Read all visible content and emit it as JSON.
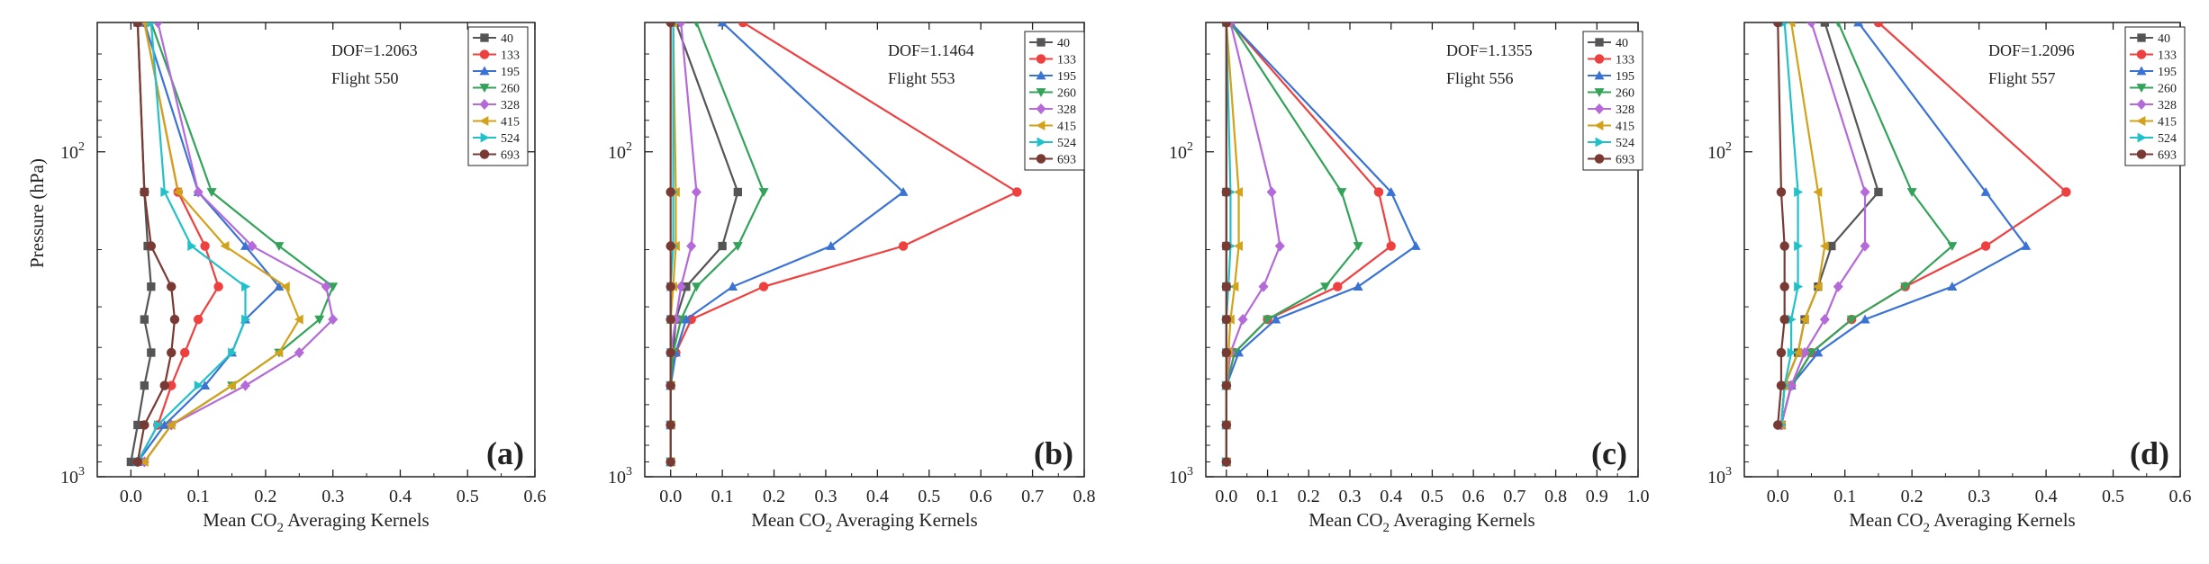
{
  "figure_colors": {
    "40": "#555555",
    "133": "#ef4040",
    "195": "#3a73d4",
    "260": "#34a35a",
    "328": "#b46ad8",
    "415": "#d2a21a",
    "524": "#22c1c9",
    "693": "#7a3a34"
  },
  "chart_data": [
    {
      "type": "line",
      "panel_label": "(a)",
      "dof_text": "DOF=1.2063",
      "flight_text": "Flight 550",
      "ylabel": "Pressure (hPa)",
      "xlabel_main": "Mean CO",
      "xlabel_sub": "2",
      "xlabel_tail": " Averaging Kernels",
      "xlim": [
        -0.05,
        0.6
      ],
      "xticks": [
        0.0,
        0.1,
        0.2,
        0.3,
        0.4,
        0.5,
        0.6
      ],
      "xtick_labels": [
        "0.0",
        "0.1",
        "0.2",
        "0.3",
        "0.4",
        "0.5",
        "0.6"
      ],
      "ylim": [
        40,
        1000
      ],
      "yscale": "log",
      "ytick_labels": [
        {
          "base": "10",
          "exp": "2"
        },
        {
          "base": "10",
          "exp": "3"
        }
      ],
      "pressure_levels": [
        40,
        133,
        195,
        260,
        328,
        415,
        524,
        693,
        900
      ],
      "series": [
        {
          "name": "40",
          "values": [
            0.01,
            0.02,
            0.025,
            0.03,
            0.02,
            0.03,
            0.02,
            0.01,
            0.0
          ]
        },
        {
          "name": "133",
          "values": [
            0.02,
            0.07,
            0.11,
            0.13,
            0.1,
            0.08,
            0.06,
            0.04,
            0.01
          ]
        },
        {
          "name": "195",
          "values": [
            0.02,
            0.1,
            0.17,
            0.22,
            0.17,
            0.15,
            0.11,
            0.05,
            0.01
          ]
        },
        {
          "name": "260",
          "values": [
            0.03,
            0.12,
            0.22,
            0.3,
            0.28,
            0.22,
            0.15,
            0.06,
            0.02
          ]
        },
        {
          "name": "328",
          "values": [
            0.04,
            0.1,
            0.18,
            0.29,
            0.3,
            0.25,
            0.17,
            0.06,
            0.02
          ]
        },
        {
          "name": "415",
          "values": [
            0.02,
            0.07,
            0.14,
            0.23,
            0.25,
            0.22,
            0.15,
            0.06,
            0.02
          ]
        },
        {
          "name": "524",
          "values": [
            0.03,
            0.05,
            0.09,
            0.17,
            0.17,
            0.15,
            0.1,
            0.04,
            0.01
          ]
        },
        {
          "name": "693",
          "values": [
            0.01,
            0.02,
            0.03,
            0.06,
            0.065,
            0.06,
            0.05,
            0.02,
            0.01
          ]
        }
      ]
    },
    {
      "type": "line",
      "panel_label": "(b)",
      "dof_text": "DOF=1.1464",
      "flight_text": "Flight 553",
      "ylabel": "",
      "xlabel_main": "Mean CO",
      "xlabel_sub": "2",
      "xlabel_tail": " Averaging Kernels",
      "xlim": [
        -0.05,
        0.8
      ],
      "xticks": [
        0.0,
        0.1,
        0.2,
        0.3,
        0.4,
        0.5,
        0.6,
        0.7,
        0.8
      ],
      "xtick_labels": [
        "0.0",
        "0.1",
        "0.2",
        "0.3",
        "0.4",
        "0.5",
        "0.6",
        "0.7",
        "0.8"
      ],
      "ylim": [
        40,
        1000
      ],
      "yscale": "log",
      "ytick_labels": [
        {
          "base": "10",
          "exp": "2"
        },
        {
          "base": "10",
          "exp": "3"
        }
      ],
      "pressure_levels": [
        40,
        133,
        195,
        260,
        328,
        415,
        524,
        693,
        900
      ],
      "series": [
        {
          "name": "40",
          "values": [
            0.01,
            0.13,
            0.1,
            0.03,
            0.01,
            0.005,
            0.0,
            0.0,
            0.0
          ]
        },
        {
          "name": "133",
          "values": [
            0.14,
            0.67,
            0.45,
            0.18,
            0.04,
            0.01,
            0.0,
            0.0,
            0.0
          ]
        },
        {
          "name": "195",
          "values": [
            0.1,
            0.45,
            0.31,
            0.12,
            0.03,
            0.01,
            0.0,
            0.0,
            0.0
          ]
        },
        {
          "name": "260",
          "values": [
            0.05,
            0.18,
            0.13,
            0.05,
            0.02,
            0.005,
            0.0,
            0.0,
            0.0
          ]
        },
        {
          "name": "328",
          "values": [
            0.02,
            0.05,
            0.04,
            0.02,
            0.01,
            0.0,
            0.0,
            0.0,
            0.0
          ]
        },
        {
          "name": "415",
          "values": [
            0.005,
            0.01,
            0.01,
            0.005,
            0.0,
            0.0,
            0.0,
            0.0,
            0.0
          ]
        },
        {
          "name": "524",
          "values": [
            0.005,
            0.005,
            0.005,
            0.0,
            0.0,
            0.0,
            0.0,
            0.0,
            0.0
          ]
        },
        {
          "name": "693",
          "values": [
            0.0,
            0.0,
            0.0,
            0.0,
            0.0,
            0.0,
            0.0,
            0.0,
            0.0
          ]
        }
      ]
    },
    {
      "type": "line",
      "panel_label": "(c)",
      "dof_text": "DOF=1.1355",
      "flight_text": "Flight 556",
      "ylabel": "",
      "xlabel_main": "Mean CO",
      "xlabel_sub": "2",
      "xlabel_tail": " Averaging Kernels",
      "xlim": [
        -0.05,
        1.0
      ],
      "xticks": [
        0.0,
        0.1,
        0.2,
        0.3,
        0.4,
        0.5,
        0.6,
        0.7,
        0.8,
        0.9,
        1.0
      ],
      "xtick_labels": [
        "0.0",
        "0.1",
        "0.2",
        "0.3",
        "0.4",
        "0.5",
        "0.6",
        "0.7",
        "0.8",
        "0.9",
        "1.0"
      ],
      "ylim": [
        40,
        1000
      ],
      "yscale": "log",
      "ytick_labels": [
        {
          "base": "10",
          "exp": "2"
        },
        {
          "base": "10",
          "exp": "3"
        }
      ],
      "pressure_levels": [
        40,
        133,
        195,
        260,
        328,
        415,
        524,
        693,
        900
      ],
      "series": [
        {
          "name": "40",
          "values": [
            0.0,
            0.0,
            0.0,
            0.0,
            0.0,
            0.0,
            0.0,
            0.0,
            0.0
          ]
        },
        {
          "name": "133",
          "values": [
            0.01,
            0.37,
            0.4,
            0.27,
            0.1,
            0.02,
            0.0,
            0.0,
            0.0
          ]
        },
        {
          "name": "195",
          "values": [
            0.01,
            0.4,
            0.46,
            0.32,
            0.12,
            0.03,
            0.0,
            0.0,
            0.0
          ]
        },
        {
          "name": "260",
          "values": [
            0.01,
            0.28,
            0.32,
            0.24,
            0.1,
            0.02,
            0.0,
            0.0,
            0.0
          ]
        },
        {
          "name": "328",
          "values": [
            0.01,
            0.11,
            0.13,
            0.09,
            0.04,
            0.01,
            0.0,
            0.0,
            0.0
          ]
        },
        {
          "name": "415",
          "values": [
            0.0,
            0.03,
            0.03,
            0.02,
            0.01,
            0.005,
            0.0,
            0.0,
            0.0
          ]
        },
        {
          "name": "524",
          "values": [
            0.0,
            0.01,
            0.01,
            0.005,
            0.0,
            0.0,
            0.0,
            0.0,
            0.0
          ]
        },
        {
          "name": "693",
          "values": [
            0.0,
            0.0,
            0.0,
            0.0,
            0.0,
            0.0,
            0.0,
            0.0,
            0.0
          ]
        }
      ]
    },
    {
      "type": "line",
      "panel_label": "(d)",
      "dof_text": "DOF=1.2096",
      "flight_text": "Flight 557",
      "ylabel": "",
      "xlabel_main": "Mean CO",
      "xlabel_sub": "2",
      "xlabel_tail": " Averaging Kernels",
      "xlim": [
        -0.05,
        0.6
      ],
      "xticks": [
        0.0,
        0.1,
        0.2,
        0.3,
        0.4,
        0.5,
        0.6
      ],
      "xtick_labels": [
        "0.0",
        "0.1",
        "0.2",
        "0.3",
        "0.4",
        "0.5",
        "0.6"
      ],
      "ylim": [
        40,
        1000
      ],
      "yscale": "log",
      "ytick_labels": [
        {
          "base": "10",
          "exp": "2"
        },
        {
          "base": "10",
          "exp": "3"
        }
      ],
      "pressure_levels": [
        40,
        133,
        195,
        260,
        328,
        415,
        524,
        693
      ],
      "series": [
        {
          "name": "40",
          "values": [
            0.07,
            0.15,
            0.08,
            0.06,
            0.04,
            0.03,
            0.01,
            0.005
          ]
        },
        {
          "name": "133",
          "values": [
            0.15,
            0.43,
            0.31,
            0.19,
            0.11,
            0.05,
            0.02,
            0.005
          ]
        },
        {
          "name": "195",
          "values": [
            0.12,
            0.31,
            0.37,
            0.26,
            0.13,
            0.06,
            0.02,
            0.005
          ]
        },
        {
          "name": "260",
          "values": [
            0.09,
            0.2,
            0.26,
            0.19,
            0.11,
            0.05,
            0.02,
            0.005
          ]
        },
        {
          "name": "328",
          "values": [
            0.05,
            0.13,
            0.13,
            0.09,
            0.07,
            0.04,
            0.02,
            0.005
          ]
        },
        {
          "name": "415",
          "values": [
            0.02,
            0.06,
            0.07,
            0.06,
            0.04,
            0.03,
            0.01,
            0.005
          ]
        },
        {
          "name": "524",
          "values": [
            0.01,
            0.03,
            0.03,
            0.03,
            0.02,
            0.02,
            0.01,
            0.005
          ]
        },
        {
          "name": "693",
          "values": [
            0.0,
            0.005,
            0.01,
            0.01,
            0.01,
            0.005,
            0.005,
            0.0
          ]
        }
      ]
    }
  ]
}
